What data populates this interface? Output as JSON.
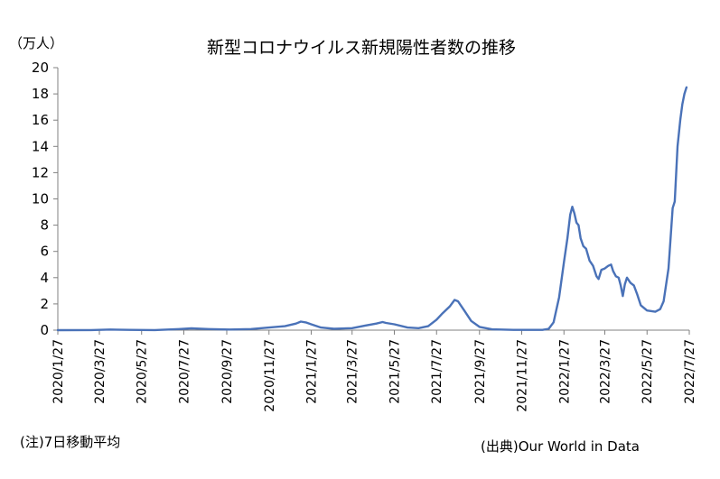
{
  "chart_data": {
    "type": "line",
    "title": "新型コロナウイルス新規陽性者数の推移",
    "ylabel": "（万人）",
    "xlabel": "",
    "ylim": [
      0,
      20
    ],
    "yticks": [
      0,
      2,
      4,
      6,
      8,
      10,
      12,
      14,
      16,
      18,
      20
    ],
    "xlim": [
      "2020-01-27",
      "2022-07-27"
    ],
    "xticks": [
      "2020/1/27",
      "2020/3/27",
      "2020/5/27",
      "2020/7/27",
      "2020/9/27",
      "2020/11/27",
      "2021/1/27",
      "2021/3/27",
      "2021/5/27",
      "2021/7/27",
      "2021/9/27",
      "2021/11/27",
      "2022/1/27",
      "2022/3/27",
      "2022/5/27",
      "2022/7/27"
    ],
    "grid": false,
    "legend": "none",
    "color": "#4a72b8",
    "series": [
      {
        "points": [
          [
            "2020-01-27",
            0
          ],
          [
            "2020-03-15",
            0.01
          ],
          [
            "2020-04-12",
            0.05
          ],
          [
            "2020-05-10",
            0.02
          ],
          [
            "2020-06-15",
            0.01
          ],
          [
            "2020-07-20",
            0.08
          ],
          [
            "2020-08-07",
            0.14
          ],
          [
            "2020-09-01",
            0.08
          ],
          [
            "2020-10-01",
            0.05
          ],
          [
            "2020-11-01",
            0.08
          ],
          [
            "2020-11-27",
            0.2
          ],
          [
            "2020-12-20",
            0.3
          ],
          [
            "2021-01-05",
            0.5
          ],
          [
            "2021-01-12",
            0.65
          ],
          [
            "2021-01-20",
            0.58
          ],
          [
            "2021-01-27",
            0.45
          ],
          [
            "2021-02-10",
            0.2
          ],
          [
            "2021-03-01",
            0.1
          ],
          [
            "2021-03-27",
            0.15
          ],
          [
            "2021-04-15",
            0.35
          ],
          [
            "2021-05-01",
            0.5
          ],
          [
            "2021-05-10",
            0.62
          ],
          [
            "2021-05-15",
            0.55
          ],
          [
            "2021-05-27",
            0.45
          ],
          [
            "2021-06-15",
            0.2
          ],
          [
            "2021-07-01",
            0.15
          ],
          [
            "2021-07-15",
            0.3
          ],
          [
            "2021-07-27",
            0.8
          ],
          [
            "2021-08-05",
            1.3
          ],
          [
            "2021-08-15",
            1.8
          ],
          [
            "2021-08-22",
            2.3
          ],
          [
            "2021-08-27",
            2.2
          ],
          [
            "2021-09-05",
            1.5
          ],
          [
            "2021-09-15",
            0.7
          ],
          [
            "2021-09-27",
            0.25
          ],
          [
            "2021-10-15",
            0.06
          ],
          [
            "2021-11-15",
            0.02
          ],
          [
            "2021-12-27",
            0.02
          ],
          [
            "2022-01-05",
            0.1
          ],
          [
            "2022-01-12",
            0.6
          ],
          [
            "2022-01-20",
            2.5
          ],
          [
            "2022-01-27",
            5.2
          ],
          [
            "2022-02-01",
            7.0
          ],
          [
            "2022-02-05",
            8.8
          ],
          [
            "2022-02-08",
            9.4
          ],
          [
            "2022-02-11",
            8.9
          ],
          [
            "2022-02-14",
            8.2
          ],
          [
            "2022-02-17",
            8.0
          ],
          [
            "2022-02-20",
            7.0
          ],
          [
            "2022-02-24",
            6.4
          ],
          [
            "2022-02-28",
            6.2
          ],
          [
            "2022-03-05",
            5.3
          ],
          [
            "2022-03-10",
            4.9
          ],
          [
            "2022-03-15",
            4.1
          ],
          [
            "2022-03-18",
            3.9
          ],
          [
            "2022-03-22",
            4.6
          ],
          [
            "2022-03-27",
            4.7
          ],
          [
            "2022-04-01",
            4.9
          ],
          [
            "2022-04-05",
            5.0
          ],
          [
            "2022-04-08",
            4.5
          ],
          [
            "2022-04-12",
            4.1
          ],
          [
            "2022-04-16",
            4.0
          ],
          [
            "2022-04-19",
            3.4
          ],
          [
            "2022-04-22",
            2.6
          ],
          [
            "2022-04-25",
            3.5
          ],
          [
            "2022-04-28",
            4.0
          ],
          [
            "2022-05-03",
            3.6
          ],
          [
            "2022-05-08",
            3.4
          ],
          [
            "2022-05-13",
            2.7
          ],
          [
            "2022-05-18",
            1.9
          ],
          [
            "2022-05-27",
            1.5
          ],
          [
            "2022-06-08",
            1.4
          ],
          [
            "2022-06-15",
            1.6
          ],
          [
            "2022-06-20",
            2.2
          ],
          [
            "2022-06-27",
            4.7
          ],
          [
            "2022-07-03",
            9.3
          ],
          [
            "2022-07-06",
            9.8
          ],
          [
            "2022-07-10",
            14.0
          ],
          [
            "2022-07-14",
            16.0
          ],
          [
            "2022-07-17",
            17.2
          ],
          [
            "2022-07-20",
            18.0
          ],
          [
            "2022-07-23",
            18.5
          ]
        ]
      }
    ]
  },
  "notes": {
    "left": "(注)7日移動平均",
    "right": "(出典)Our World in Data"
  }
}
